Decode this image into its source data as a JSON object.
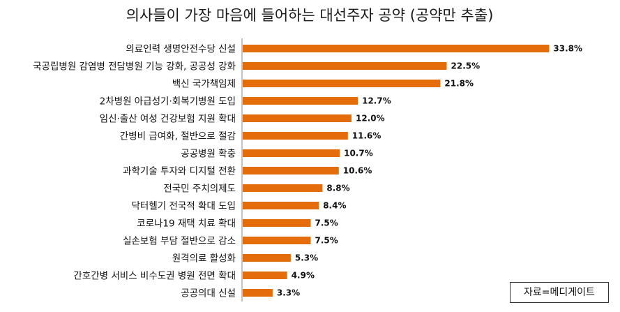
{
  "chart_data": {
    "type": "bar",
    "orientation": "horizontal",
    "title": "의사들이 가장 마음에 들어하는 대선주자 공약 (공약만 추출)",
    "categories": [
      "의료인력 생명안전수당 신설",
      "국공립병원 감염병 전담병원 기능 강화, 공공성 강화",
      "백신 국가책임제",
      "2차병원 아급성기·회복기병원 도입",
      "임신·출산 여성 건강보험 지원 확대",
      "간병비 급여화, 절반으로 절감",
      "공공병원 확충",
      "과학기술 투자와 디지털 전환",
      "전국민 주치의제도",
      "닥터헬기 전국적 확대 도입",
      "코로나19 재택 치료 확대",
      "실손보험 부담 절반으로 감소",
      "원격의료 활성화",
      "간호간병 서비스 비수도권 병원 전면 확대",
      "공공의대 신설"
    ],
    "values": [
      33.8,
      22.5,
      21.8,
      12.7,
      12.0,
      11.6,
      10.7,
      10.6,
      8.8,
      8.4,
      7.5,
      7.5,
      5.3,
      4.9,
      3.3
    ],
    "value_labels": [
      "33.8%",
      "22.5%",
      "21.8%",
      "12.7%",
      "12.0%",
      "11.6%",
      "10.7%",
      "10.6%",
      "8.8%",
      "8.4%",
      "7.5%",
      "7.5%",
      "5.3%",
      "4.9%",
      "3.3%"
    ],
    "unit": "%",
    "xlim": [
      0,
      35
    ],
    "grid": false,
    "legend": "none",
    "bar_color": "#E46C0A"
  },
  "source_note": "자료=메디게이트"
}
